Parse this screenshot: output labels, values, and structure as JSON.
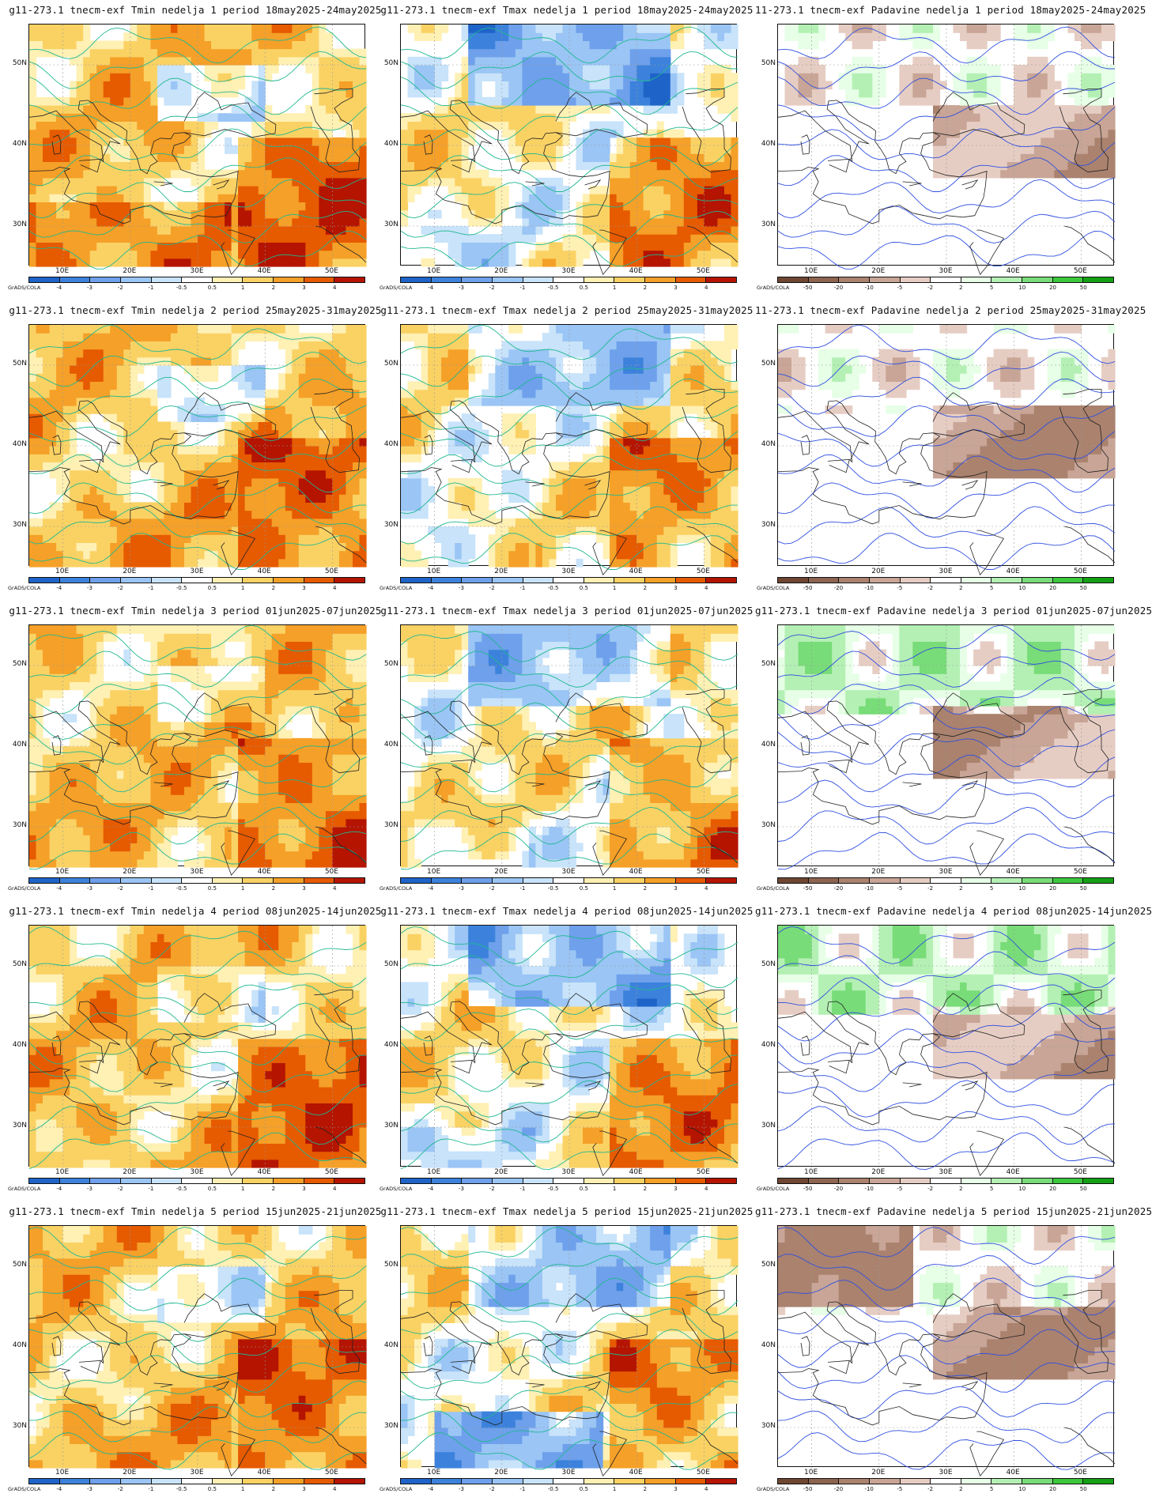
{
  "panels": [
    {
      "title": "g11-273.1 tnecm-exf Tmin nedelja 1 period 18may2025-24may2025",
      "var": "tmin",
      "week": 1
    },
    {
      "title": "g11-273.1 tnecm-exf Tmax nedelja 1 period 18may2025-24may2025",
      "var": "tmax",
      "week": 1
    },
    {
      "title": "11-273.1 tnecm-exf Padavine nedelja 1 period 18may2025-24may2025",
      "var": "precip",
      "week": 1
    },
    {
      "title": "g11-273.1 tnecm-exf Tmin nedelja 2 period 25may2025-31may2025",
      "var": "tmin",
      "week": 2
    },
    {
      "title": "g11-273.1 tnecm-exf Tmax nedelja 2 period 25may2025-31may2025",
      "var": "tmax",
      "week": 2
    },
    {
      "title": "11-273.1 tnecm-exf Padavine nedelja 2 period 25may2025-31may2025",
      "var": "precip",
      "week": 2
    },
    {
      "title": "g11-273.1 tnecm-exf Tmin nedelja 3 period 01jun2025-07jun2025",
      "var": "tmin",
      "week": 3
    },
    {
      "title": "g11-273.1 tnecm-exf Tmax nedelja 3 period 01jun2025-07jun2025",
      "var": "tmax",
      "week": 3
    },
    {
      "title": "g11-273.1 tnecm-exf Padavine nedelja 3 period 01jun2025-07jun2025",
      "var": "precip",
      "week": 3
    },
    {
      "title": "g11-273.1 tnecm-exf Tmin nedelja 4 period 08jun2025-14jun2025",
      "var": "tmin",
      "week": 4
    },
    {
      "title": "g11-273.1 tnecm-exf Tmax nedelja 4 period 08jun2025-14jun2025",
      "var": "tmax",
      "week": 4
    },
    {
      "title": "g11-273.1 tnecm-exf Padavine nedelja 4 period 08jun2025-14jun2025",
      "var": "precip",
      "week": 4
    },
    {
      "title": "g11-273.1 tnecm-exf Tmin nedelja 5 period 15jun2025-21jun2025",
      "var": "tmin",
      "week": 5
    },
    {
      "title": "g11-273.1 tnecm-exf Tmax nedelja 5 period 15jun2025-21jun2025",
      "var": "tmax",
      "week": 5
    },
    {
      "title": "g11-273.1 tnecm-exf Padavine nedelja 5 period 15jun2025-21jun2025",
      "var": "precip",
      "week": 5
    }
  ],
  "axes": {
    "lat_labels": [
      "50N",
      "40N",
      "30N"
    ],
    "lon_labels": [
      "10E",
      "20E",
      "30E",
      "40E",
      "50E"
    ]
  },
  "colorbars": {
    "temp": {
      "labels": [
        "-4",
        "-3",
        "-2",
        "-1",
        "-0.5",
        "0.5",
        "1",
        "2",
        "3",
        "4"
      ],
      "colors": [
        "#1e64c8",
        "#3c82dc",
        "#6ea0eb",
        "#9ac5f5",
        "#c8e3fa",
        "#ffffff",
        "#fff0b4",
        "#fad264",
        "#f5a028",
        "#e65a00",
        "#b41400"
      ]
    },
    "precip": {
      "labels": [
        "-50",
        "-20",
        "-10",
        "-5",
        "-2",
        "2",
        "5",
        "10",
        "20",
        "50"
      ],
      "colors": [
        "#6e4632",
        "#8c6450",
        "#aa826e",
        "#c8a596",
        "#e6cdc3",
        "#ffffff",
        "#e6ffe6",
        "#b4f0b4",
        "#78dc78",
        "#3cc83c",
        "#14a014"
      ]
    },
    "credit": "GrADS/COLA"
  }
}
